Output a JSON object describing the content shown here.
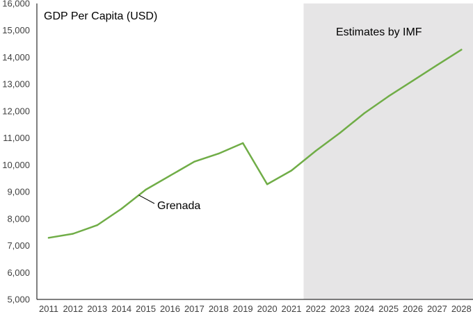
{
  "chart_data": {
    "type": "line",
    "title": "GDP Per Capita (USD)",
    "xlabel": "",
    "ylabel": "",
    "x": [
      "2011",
      "2012",
      "2013",
      "2014",
      "2015",
      "2016",
      "2017",
      "2018",
      "2019",
      "2020",
      "2021",
      "2022",
      "2023",
      "2024",
      "2025",
      "2026",
      "2027",
      "2028"
    ],
    "series": [
      {
        "name": "Grenada",
        "values": [
          7290,
          7440,
          7760,
          8370,
          9080,
          9600,
          10120,
          10420,
          10810,
          9280,
          9790,
          10520,
          11190,
          11920,
          12550,
          13130,
          13710,
          14280
        ]
      }
    ],
    "ylim": [
      5000,
      16000
    ],
    "yticks": [
      5000,
      6000,
      7000,
      8000,
      9000,
      10000,
      11000,
      12000,
      13000,
      14000,
      15000,
      16000
    ],
    "ytick_labels": [
      "5,000",
      "6,000",
      "7,000",
      "8,000",
      "9,000",
      "10,000",
      "11,000",
      "12,000",
      "13,000",
      "14,000",
      "15,000",
      "16,000"
    ],
    "grid": false,
    "line_color": "#70ad47",
    "estimate_region": {
      "from": "2021",
      "to": "2028",
      "label": "Estimates by IMF",
      "color": "#e6e5e6"
    },
    "series_label_anchor": "2015"
  }
}
